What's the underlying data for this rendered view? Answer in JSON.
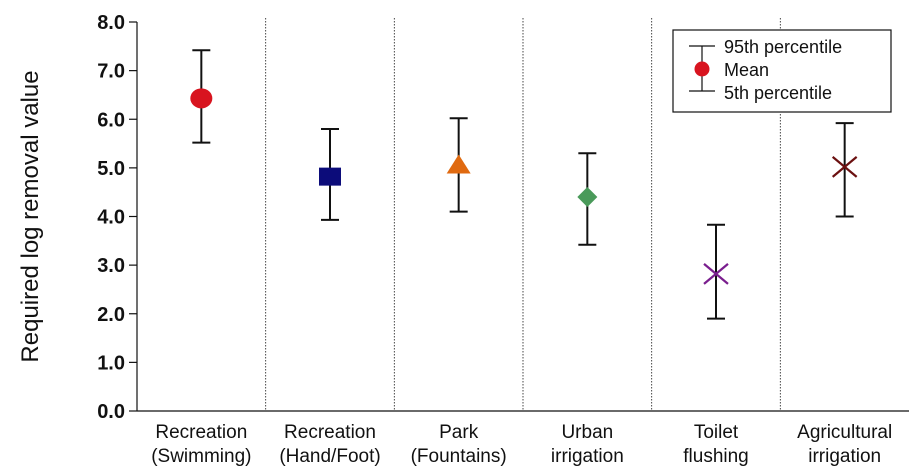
{
  "chart_data": {
    "type": "scatter",
    "title": "",
    "xlabel": "",
    "ylabel": "Required log removal value",
    "ylim": [
      0,
      8
    ],
    "yticks": [
      "0.0",
      "1.0",
      "2.0",
      "3.0",
      "4.0",
      "5.0",
      "6.0",
      "7.0",
      "8.0"
    ],
    "grid": false,
    "legend": {
      "placement": "top-right",
      "entries": [
        "95th percentile",
        "Mean",
        "5th percentile"
      ]
    },
    "categories": [
      {
        "lines": [
          "Recreation",
          "(Swimming)"
        ],
        "mean": 6.43,
        "p5": 5.52,
        "p95": 7.42,
        "marker": "circle",
        "color": "#d8141f"
      },
      {
        "lines": [
          "Recreation",
          "(Hand/Foot)"
        ],
        "mean": 4.82,
        "p5": 3.93,
        "p95": 5.8,
        "marker": "square",
        "color": "#0c0c7a"
      },
      {
        "lines": [
          "Park",
          "(Fountains)"
        ],
        "mean": 5.05,
        "p5": 4.1,
        "p95": 6.02,
        "marker": "triangle",
        "color": "#e06a10"
      },
      {
        "lines": [
          "Urban",
          "irrigation"
        ],
        "mean": 4.4,
        "p5": 3.42,
        "p95": 5.3,
        "marker": "diamond",
        "color": "#4a9a5a"
      },
      {
        "lines": [
          "Toilet",
          "flushing"
        ],
        "mean": 2.82,
        "p5": 1.9,
        "p95": 3.83,
        "marker": "x",
        "color": "#7a1e8e"
      },
      {
        "lines": [
          "Agricultural",
          "irrigation"
        ],
        "mean": 5.02,
        "p5": 4.0,
        "p95": 5.92,
        "marker": "x",
        "color": "#6b1010"
      }
    ]
  }
}
